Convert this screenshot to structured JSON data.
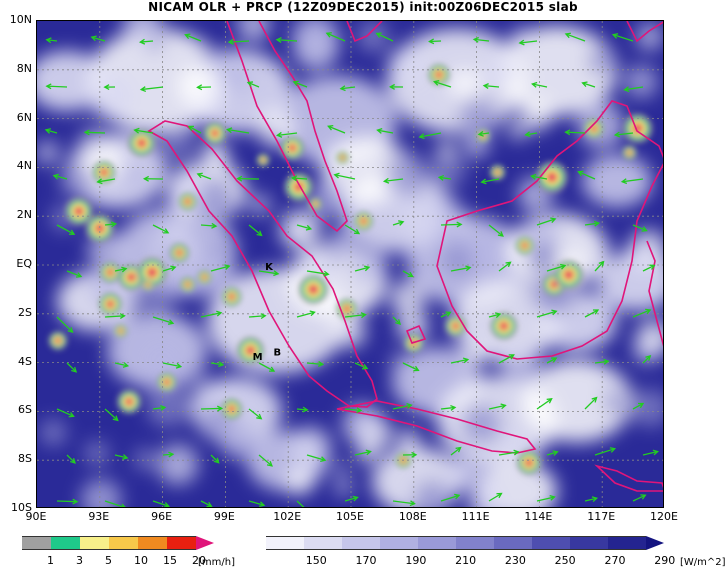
{
  "title": "NICAM OLR + PRCP (12Z09DEC2015) init:00Z06DEC2015 slab",
  "map": {
    "lon_range": [
      90,
      120
    ],
    "lat_range": [
      -10,
      10
    ],
    "lat_labels": [
      "10N",
      "8N",
      "6N",
      "4N",
      "2N",
      "EQ",
      "2S",
      "4S",
      "6S",
      "8S",
      "10S"
    ],
    "lon_labels": [
      "90E",
      "93E",
      "96E",
      "99E",
      "102E",
      "105E",
      "108E",
      "111E",
      "114E",
      "117E",
      "120E"
    ],
    "place_labels": [
      {
        "text": "K",
        "lon": 100.9,
        "lat": -0.2
      },
      {
        "text": "M",
        "lon": 100.3,
        "lat": -3.9
      },
      {
        "text": "B",
        "lon": 101.3,
        "lat": -3.7
      }
    ],
    "colors": {
      "coast": "#e0157a",
      "wind": "#22cc22",
      "cloud_bg": "#1e1e8c"
    }
  },
  "precip_bar": {
    "labels": [
      "1",
      "3",
      "5",
      "10",
      "15",
      "20"
    ],
    "unit": "[mm/h]",
    "colors": [
      "#a0a0a0",
      "#1fc98a",
      "#f7f08a",
      "#f7c84a",
      "#f08a20",
      "#e82010",
      "#e0157a"
    ]
  },
  "olr_bar": {
    "labels": [
      "150",
      "170",
      "190",
      "210",
      "230",
      "250",
      "270",
      "290"
    ],
    "unit": "[W/m^2]",
    "colors": [
      "#f2f2fb",
      "#dcdcf2",
      "#c6c6ea",
      "#b0b0e2",
      "#9a9ad8",
      "#8282cc",
      "#6a6ac0",
      "#4e4eb0",
      "#3838a0",
      "#242490",
      "#141480"
    ]
  }
}
